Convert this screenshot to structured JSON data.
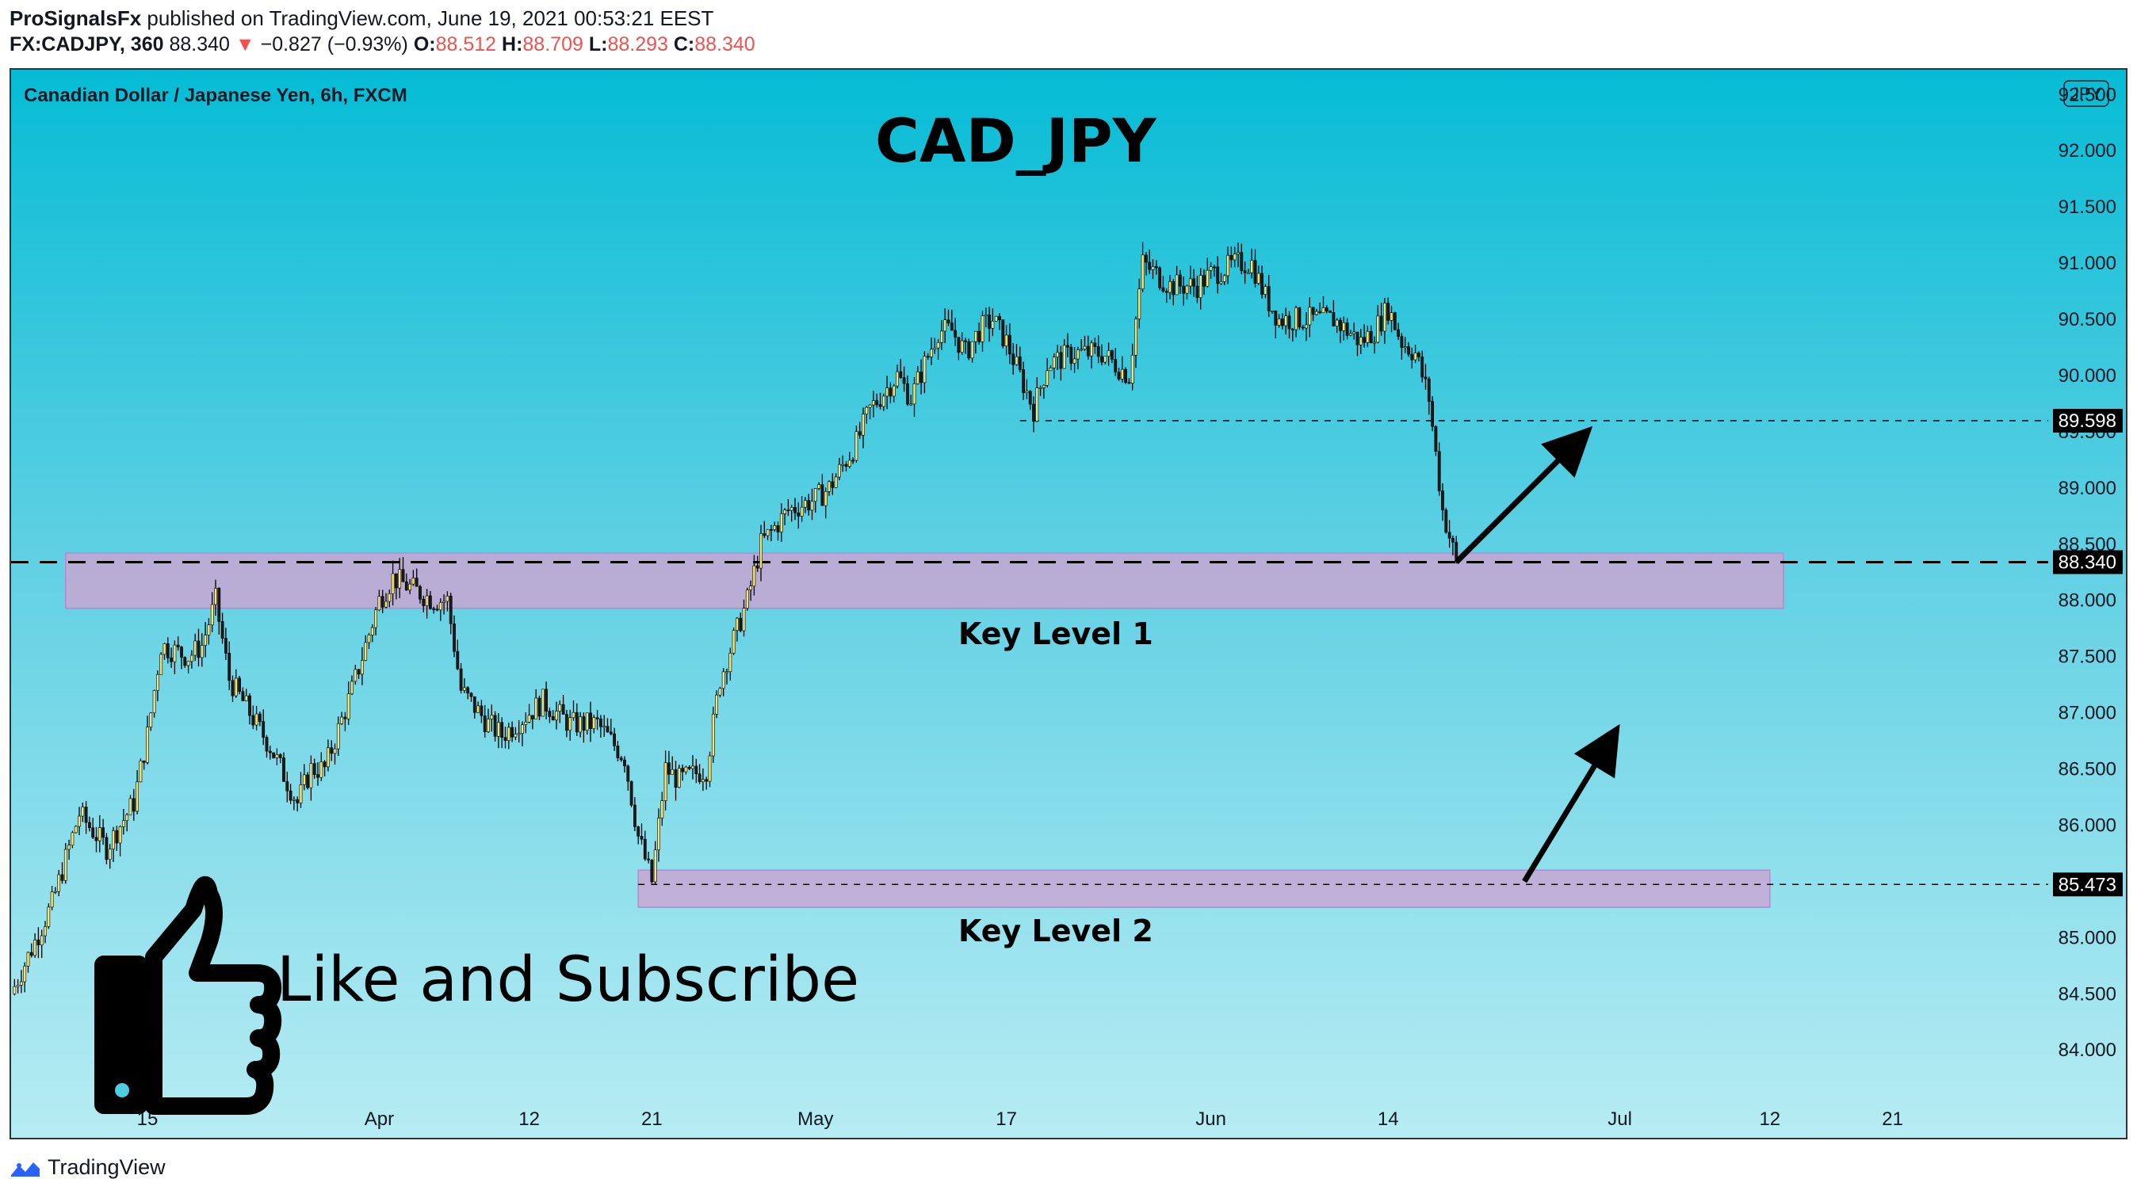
{
  "header": {
    "author": "ProSignalsFx",
    "published_text": "published on TradingView.com, June 19, 2021 00:53:21 EEST",
    "symbol": "FX:CADJPY, 360",
    "last": "88.340",
    "change": "−0.827 (−0.93%)",
    "o_label": "O:",
    "o_val": "88.512",
    "h_label": "H:",
    "h_val": "88.709",
    "l_label": "L:",
    "l_val": "88.293",
    "c_label": "C:",
    "c_val": "88.340"
  },
  "footer": {
    "brand": "TradingView"
  },
  "colors": {
    "bg_top": "#05bcd5",
    "bg_bottom": "#b7ecf3",
    "zone_fill": "#c8a6d2",
    "candle": "#f4e57a",
    "wick": "#000000",
    "label_bg": "#000000",
    "label_text": "#ffffff"
  },
  "chart_data": {
    "type": "candlestick",
    "series_label": "Canadian Dollar / Japanese Yen, 6h, FXCM",
    "title": "CAD_JPY",
    "currency_badge": "JPY",
    "ylim": [
      83.6,
      92.65
    ],
    "y_ticks": [
      "84.000",
      "84.500",
      "85.000",
      "85.500",
      "86.000",
      "86.500",
      "87.000",
      "87.500",
      "88.000",
      "88.500",
      "89.000",
      "89.500",
      "90.000",
      "90.500",
      "91.000",
      "91.500",
      "92.000",
      "92.500"
    ],
    "x_ticks": [
      {
        "label": "15",
        "date": "2021-03-15"
      },
      {
        "label": "Apr",
        "date": "2021-04-01"
      },
      {
        "label": "12",
        "date": "2021-04-12"
      },
      {
        "label": "21",
        "date": "2021-04-21"
      },
      {
        "label": "May",
        "date": "2021-05-03"
      },
      {
        "label": "17",
        "date": "2021-05-17"
      },
      {
        "label": "Jun",
        "date": "2021-06-01"
      },
      {
        "label": "14",
        "date": "2021-06-14"
      },
      {
        "label": "Jul",
        "date": "2021-07-01"
      },
      {
        "label": "12",
        "date": "2021-07-12"
      },
      {
        "label": "21",
        "date": "2021-07-21"
      }
    ],
    "close_path": [
      [
        "2021-03-05",
        84.5
      ],
      [
        "2021-03-08",
        85.3
      ],
      [
        "2021-03-10",
        86.1
      ],
      [
        "2021-03-12",
        85.8
      ],
      [
        "2021-03-14",
        86.2
      ],
      [
        "2021-03-15",
        86.8
      ],
      [
        "2021-03-16",
        87.6
      ],
      [
        "2021-03-18",
        87.5
      ],
      [
        "2021-03-19",
        87.6
      ],
      [
        "2021-03-20",
        88.0
      ],
      [
        "2021-03-21",
        87.3
      ],
      [
        "2021-03-23",
        86.9
      ],
      [
        "2021-03-24",
        86.7
      ],
      [
        "2021-03-26",
        86.2
      ],
      [
        "2021-03-27",
        86.5
      ],
      [
        "2021-03-28",
        86.5
      ],
      [
        "2021-03-30",
        87.2
      ],
      [
        "2021-03-31",
        87.6
      ],
      [
        "2021-04-01",
        88.0
      ],
      [
        "2021-04-02",
        88.2
      ],
      [
        "2021-04-05",
        88.0
      ],
      [
        "2021-04-06",
        88.0
      ],
      [
        "2021-04-07",
        87.2
      ],
      [
        "2021-04-09",
        86.9
      ],
      [
        "2021-04-10",
        86.8
      ],
      [
        "2021-04-12",
        87.0
      ],
      [
        "2021-04-13",
        87.1
      ],
      [
        "2021-04-15",
        86.9
      ],
      [
        "2021-04-17",
        86.9
      ],
      [
        "2021-04-19",
        86.6
      ],
      [
        "2021-04-20",
        85.9
      ],
      [
        "2021-04-21",
        85.5
      ],
      [
        "2021-04-22",
        86.5
      ],
      [
        "2021-04-23",
        86.4
      ],
      [
        "2021-04-25",
        86.5
      ],
      [
        "2021-04-26",
        87.3
      ],
      [
        "2021-04-28",
        88.0
      ],
      [
        "2021-04-29",
        88.5
      ],
      [
        "2021-05-01",
        88.8
      ],
      [
        "2021-05-03",
        88.9
      ],
      [
        "2021-05-04",
        89.0
      ],
      [
        "2021-05-06",
        89.4
      ],
      [
        "2021-05-07",
        89.7
      ],
      [
        "2021-05-09",
        90.0
      ],
      [
        "2021-05-10",
        89.8
      ],
      [
        "2021-05-12",
        90.4
      ],
      [
        "2021-05-13",
        90.4
      ],
      [
        "2021-05-14",
        90.2
      ],
      [
        "2021-05-15",
        90.4
      ],
      [
        "2021-05-16",
        90.5
      ],
      [
        "2021-05-17",
        90.3
      ],
      [
        "2021-05-19",
        89.7
      ],
      [
        "2021-05-20",
        90.1
      ],
      [
        "2021-05-22",
        90.2
      ],
      [
        "2021-05-24",
        90.2
      ],
      [
        "2021-05-26",
        90.0
      ],
      [
        "2021-05-27",
        91.0
      ],
      [
        "2021-05-29",
        90.8
      ],
      [
        "2021-05-31",
        90.8
      ],
      [
        "2021-06-01",
        90.9
      ],
      [
        "2021-06-03",
        91.0
      ],
      [
        "2021-06-04",
        91.0
      ],
      [
        "2021-06-05",
        90.7
      ],
      [
        "2021-06-06",
        90.5
      ],
      [
        "2021-06-08",
        90.5
      ],
      [
        "2021-06-10",
        90.5
      ],
      [
        "2021-06-12",
        90.3
      ],
      [
        "2021-06-13",
        90.4
      ],
      [
        "2021-06-14",
        90.6
      ],
      [
        "2021-06-15",
        90.3
      ],
      [
        "2021-06-16",
        90.2
      ],
      [
        "2021-06-17",
        89.8
      ],
      [
        "2021-06-18",
        88.8
      ],
      [
        "2021-06-19",
        88.34
      ]
    ],
    "last_price": 88.34,
    "key_levels": [
      {
        "name": "Key Level 1",
        "from_date": "2021-03-09",
        "to_date": "2021-07-13",
        "y_low": 87.93,
        "y_high": 88.42,
        "line": 88.34
      },
      {
        "name": "Key Level 2",
        "from_date": "2021-04-20",
        "to_date": "2021-07-12",
        "y_low": 85.27,
        "y_high": 85.6,
        "line": 85.473
      }
    ],
    "target_line": {
      "value": 89.598,
      "from_date": "2021-05-18"
    },
    "price_labels": [
      "89.598",
      "88.340",
      "85.473"
    ],
    "arrows": [
      {
        "from": [
          "2021-06-19",
          88.34
        ],
        "to": [
          "2021-06-29",
          89.55
        ]
      },
      {
        "from": [
          "2021-06-24",
          85.5
        ],
        "to": [
          "2021-07-01",
          86.9
        ]
      }
    ],
    "promo_text": "Like and Subscribe"
  }
}
